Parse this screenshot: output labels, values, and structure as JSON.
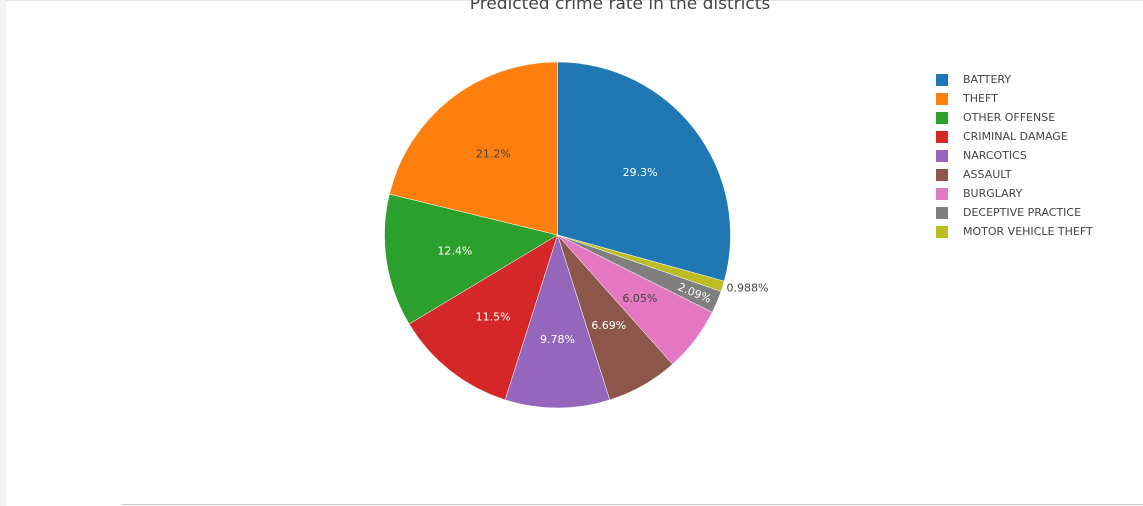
{
  "chart_data": {
    "type": "pie",
    "title": "Predicted crime rate in the districts",
    "legend_position": "right",
    "slices": [
      {
        "label": "BATTERY",
        "value": 29.3,
        "display": "29.3%",
        "color": "#1f77b4",
        "text_color": "#ffffff"
      },
      {
        "label": "MOTOR VEHICLE THEFT",
        "value": 0.988,
        "display": "0.988%",
        "color": "#bcbd22",
        "text_color": "#444444"
      },
      {
        "label": "DECEPTIVE PRACTICE",
        "value": 2.09,
        "display": "2.09%",
        "color": "#7f7f7f",
        "text_color": "#ffffff"
      },
      {
        "label": "BURGLARY",
        "value": 6.05,
        "display": "6.05%",
        "color": "#e377c2",
        "text_color": "#444444"
      },
      {
        "label": "ASSAULT",
        "value": 6.69,
        "display": "6.69%",
        "color": "#8c564b",
        "text_color": "#ffffff"
      },
      {
        "label": "NARCOTICS",
        "value": 9.78,
        "display": "9.78%",
        "color": "#9467bd",
        "text_color": "#ffffff"
      },
      {
        "label": "CRIMINAL DAMAGE",
        "value": 11.5,
        "display": "11.5%",
        "color": "#d62728",
        "text_color": "#ffffff"
      },
      {
        "label": "OTHER OFFENSE",
        "value": 12.4,
        "display": "12.4%",
        "color": "#2ca02c",
        "text_color": "#ffffff"
      },
      {
        "label": "THEFT",
        "value": 21.2,
        "display": "21.2%",
        "color": "#ff7f0e",
        "text_color": "#444444"
      }
    ],
    "legend": [
      {
        "label": "BATTERY",
        "color": "#1f77b4"
      },
      {
        "label": "THEFT",
        "color": "#ff7f0e"
      },
      {
        "label": "OTHER OFFENSE",
        "color": "#2ca02c"
      },
      {
        "label": "CRIMINAL DAMAGE",
        "color": "#d62728"
      },
      {
        "label": "NARCOTICS",
        "color": "#9467bd"
      },
      {
        "label": "ASSAULT",
        "color": "#8c564b"
      },
      {
        "label": "BURGLARY",
        "color": "#e377c2"
      },
      {
        "label": "DECEPTIVE PRACTICE",
        "color": "#7f7f7f"
      },
      {
        "label": "MOTOR VEHICLE THEFT",
        "color": "#bcbd22"
      }
    ]
  }
}
